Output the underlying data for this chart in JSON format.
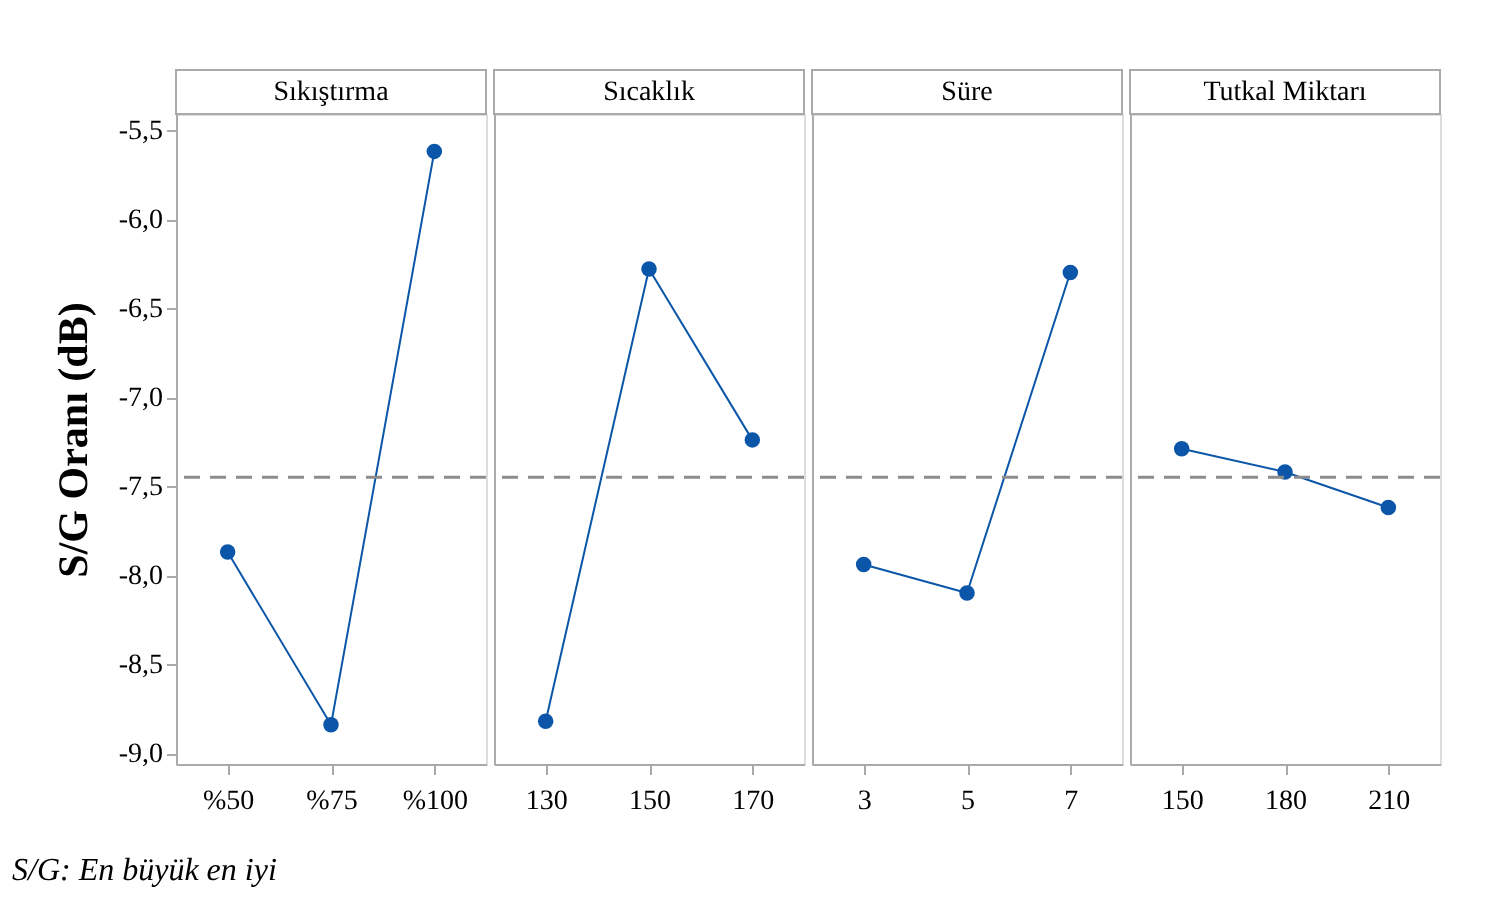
{
  "chart_data": [
    {
      "type": "line",
      "title": "Sıkıştırma",
      "ylabel": "S/G Oranı (dB)",
      "categories": [
        "%50",
        "%75",
        "%100"
      ],
      "series": [
        {
          "color": "#0b56a8",
          "values": [
            -7.87,
            -8.84,
            -5.62
          ]
        }
      ],
      "ylim": [
        -9.06,
        -5.41
      ],
      "yticks": [
        {
          "value": -9.0,
          "label": "-9,0"
        },
        {
          "value": -8.5,
          "label": "-8,5"
        },
        {
          "value": -8.0,
          "label": "-8,0"
        },
        {
          "value": -7.5,
          "label": "-7,5"
        },
        {
          "value": -7.0,
          "label": "-7,0"
        },
        {
          "value": -6.5,
          "label": "-6,5"
        },
        {
          "value": -6.0,
          "label": "-6,0"
        },
        {
          "value": -5.5,
          "label": "-5,5"
        }
      ],
      "ref_lines": [
        {
          "axis": "y",
          "value": -7.45,
          "color": "#8c8c8c",
          "line_style": "dashed"
        }
      ],
      "marker": "circle",
      "line_style": "solid",
      "grid": false,
      "annotations": [
        "S/G: En büyük en iyi"
      ]
    },
    {
      "type": "line",
      "title": "Sıcaklık",
      "categories": [
        "130",
        "150",
        "170"
      ],
      "series": [
        {
          "color": "#0b56a8",
          "values": [
            -8.82,
            -6.28,
            -7.24
          ]
        }
      ],
      "ylim": [
        -9.06,
        -5.41
      ],
      "tick_labels": "x",
      "ref_lines": [
        {
          "axis": "y",
          "value": -7.45,
          "color": "#8c8c8c",
          "line_style": "dashed"
        }
      ],
      "marker": "circle",
      "line_style": "solid",
      "grid": false
    },
    {
      "type": "line",
      "title": "Süre",
      "categories": [
        "3",
        "5",
        "7"
      ],
      "series": [
        {
          "color": "#0b56a8",
          "values": [
            -7.94,
            -8.1,
            -6.3
          ]
        }
      ],
      "ylim": [
        -9.06,
        -5.41
      ],
      "tick_labels": "x",
      "ref_lines": [
        {
          "axis": "y",
          "value": -7.45,
          "color": "#8c8c8c",
          "line_style": "dashed"
        }
      ],
      "marker": "circle",
      "line_style": "solid",
      "grid": false
    },
    {
      "type": "line",
      "title": "Tutkal Miktarı",
      "categories": [
        "150",
        "180",
        "210"
      ],
      "series": [
        {
          "color": "#0b56a8",
          "values": [
            -7.29,
            -7.42,
            -7.62
          ]
        }
      ],
      "ylim": [
        -9.06,
        -5.41
      ],
      "tick_labels": "x",
      "ref_lines": [
        {
          "axis": "y",
          "value": -7.45,
          "color": "#8c8c8c",
          "line_style": "dashed"
        }
      ],
      "marker": "circle",
      "line_style": "solid",
      "grid": false
    }
  ]
}
